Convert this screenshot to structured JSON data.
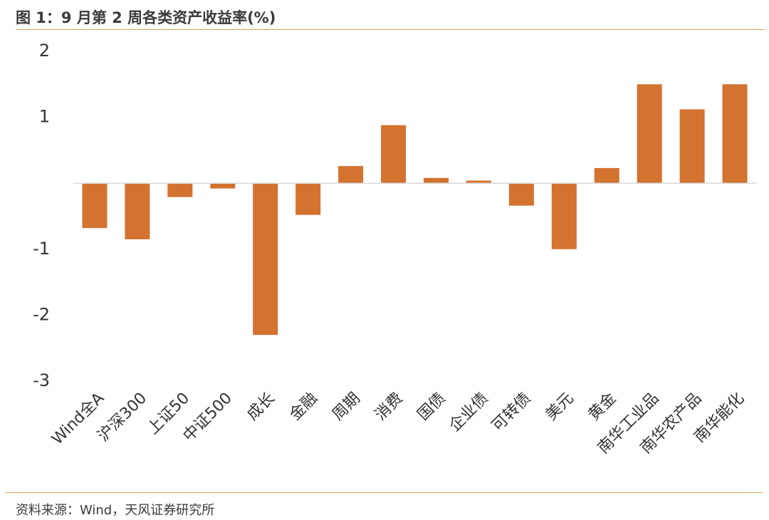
{
  "header": {
    "title": "图 1：9 月第 2 周各类资产收益率(%)"
  },
  "footer": {
    "source": "资料来源：Wind，天风证券研究所"
  },
  "colors": {
    "bar": "#d4722f",
    "rule": "#e0a25a",
    "zero_line": "#d9d9d9"
  },
  "chart_data": {
    "type": "bar",
    "title": "图 1：9 月第 2 周各类资产收益率(%)",
    "xlabel": "",
    "ylabel": "",
    "ylim": [
      -3,
      2
    ],
    "yticks": [
      2,
      1,
      -1,
      -2,
      -3
    ],
    "grid": false,
    "legend": "none",
    "categories": [
      "Wind全A",
      "沪深300",
      "上证50",
      "中证500",
      "成长",
      "金融",
      "周期",
      "消费",
      "国债",
      "企业债",
      "可转债",
      "美元",
      "黄金",
      "南华工业品",
      "南华农产品",
      "南华能化"
    ],
    "values": [
      -0.68,
      -0.85,
      -0.21,
      -0.08,
      -2.3,
      -0.48,
      0.26,
      0.88,
      0.08,
      0.04,
      -0.34,
      -1.0,
      0.23,
      1.5,
      1.12,
      1.5
    ]
  }
}
